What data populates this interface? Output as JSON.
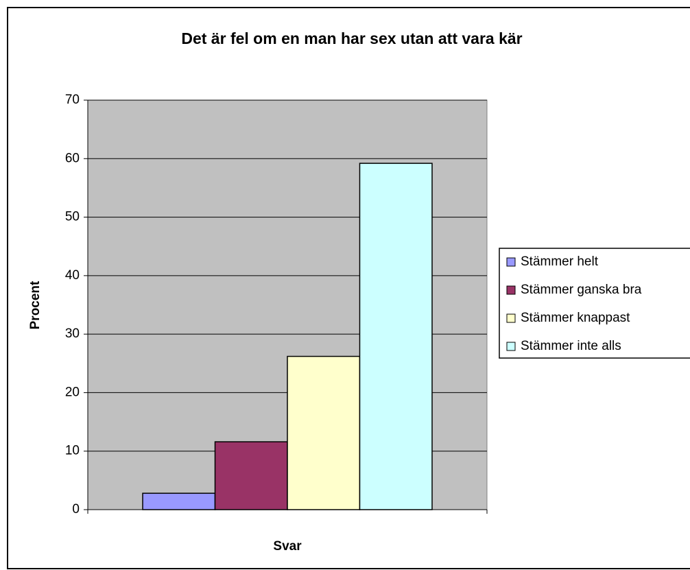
{
  "chart_data": {
    "type": "bar",
    "title": "Det är fel om en man har sex utan att vara kär",
    "x_label": "Svar",
    "y_label": "Procent",
    "categories": [
      null
    ],
    "series": [
      {
        "name": "Stämmer helt",
        "color": "#9999ff",
        "values": [
          2.8
        ]
      },
      {
        "name": "Stämmer ganska bra",
        "color": "#993366",
        "values": [
          11.6
        ]
      },
      {
        "name": "Stämmer knappast",
        "color": "#ffffcc",
        "values": [
          26.2
        ]
      },
      {
        "name": "Stämmer inte alls",
        "color": "#ccffff",
        "values": [
          59.2
        ]
      }
    ],
    "ylim": [
      0,
      70
    ],
    "yticks": [
      0,
      10,
      20,
      30,
      40,
      50,
      60,
      70
    ],
    "grid": true,
    "plot_background": "#c0c0c0",
    "legend": "right"
  }
}
